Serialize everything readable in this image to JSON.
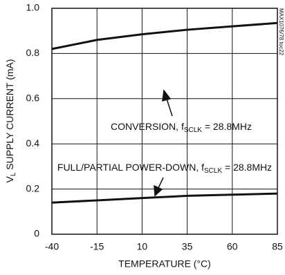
{
  "chart_data": {
    "type": "line",
    "x": [
      -40,
      -15,
      10,
      35,
      60,
      85
    ],
    "series": [
      {
        "color": "#111111",
        "values": [
          0.82,
          0.86,
          0.885,
          0.905,
          0.92,
          0.935
        ]
      },
      {
        "color": "#111111",
        "values": [
          0.14,
          0.15,
          0.16,
          0.17,
          0.175,
          0.18
        ]
      }
    ],
    "xlim": [
      -40,
      85
    ],
    "xticks": [
      -40,
      -15,
      10,
      35,
      60,
      85
    ],
    "ylim": [
      0,
      1
    ],
    "yticks": [
      0,
      0.2,
      0.4,
      0.6,
      0.8,
      {
        "value": 1,
        "label": "1.0"
      }
    ],
    "grid": true,
    "xlabel": "TEMPERATURE (°C)",
    "ylabel": {
      "main": "V",
      "sub": "L",
      "rest": " SUPPLY CURRENT (mA)"
    },
    "annotations": [
      {
        "main": "CONVERSION, f",
        "sub": "SCLK",
        "rest": " = 28.8MHz"
      },
      {
        "main": "FULL/PARTIAL POWER-DOWN, f",
        "sub": "SCLK",
        "rest": " = 28.8MHz"
      }
    ],
    "note": "MAX1076/78 toc22"
  }
}
